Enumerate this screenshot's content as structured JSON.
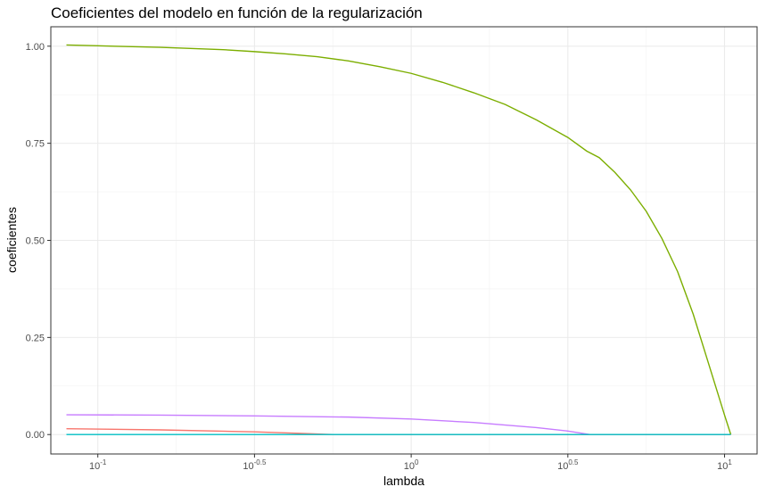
{
  "chart_data": {
    "type": "line",
    "title": "Coeficientes del modelo en función de la regularización",
    "xlabel": "lambda",
    "ylabel": "coeficientes",
    "x_scale": "log10",
    "xlim": [
      0.0708,
      12.7
    ],
    "ylim": [
      -0.05,
      1.05
    ],
    "grid": true,
    "legend": "none",
    "x_ticks": [
      {
        "value": 0.1,
        "base": "10",
        "exp": "-1"
      },
      {
        "value": 0.3162,
        "base": "10",
        "exp": "-0.5"
      },
      {
        "value": 1,
        "base": "10",
        "exp": "0"
      },
      {
        "value": 3.162,
        "base": "10",
        "exp": "0.5"
      },
      {
        "value": 10,
        "base": "10",
        "exp": "1"
      }
    ],
    "y_ticks": [
      "0.00",
      "0.25",
      "0.50",
      "0.75",
      "1.00"
    ],
    "y_tick_values": [
      0,
      0.25,
      0.5,
      0.75,
      1.0
    ],
    "series": [
      {
        "color": "#7CAE00",
        "points": [
          [
            0.0794,
            1.003
          ],
          [
            0.1,
            1.001
          ],
          [
            0.1585,
            0.997
          ],
          [
            0.2512,
            0.991
          ],
          [
            0.3162,
            0.986
          ],
          [
            0.3981,
            0.98
          ],
          [
            0.5012,
            0.973
          ],
          [
            0.631,
            0.962
          ],
          [
            0.7943,
            0.947
          ],
          [
            1.0,
            0.93
          ],
          [
            1.259,
            0.907
          ],
          [
            1.585,
            0.88
          ],
          [
            1.995,
            0.85
          ],
          [
            2.512,
            0.81
          ],
          [
            3.162,
            0.765
          ],
          [
            3.631,
            0.73
          ],
          [
            3.981,
            0.713
          ],
          [
            4.467,
            0.675
          ],
          [
            5.012,
            0.63
          ],
          [
            5.623,
            0.575
          ],
          [
            6.31,
            0.505
          ],
          [
            7.079,
            0.42
          ],
          [
            7.943,
            0.31
          ],
          [
            8.913,
            0.18
          ],
          [
            10.0,
            0.05
          ],
          [
            10.47,
            0.0
          ]
        ]
      },
      {
        "color": "#C77CFF",
        "points": [
          [
            0.0794,
            0.051
          ],
          [
            0.1585,
            0.05
          ],
          [
            0.3162,
            0.048
          ],
          [
            0.631,
            0.045
          ],
          [
            1.0,
            0.04
          ],
          [
            1.585,
            0.031
          ],
          [
            2.512,
            0.018
          ],
          [
            3.162,
            0.009
          ],
          [
            3.715,
            0.0
          ],
          [
            10.47,
            0.0
          ]
        ]
      },
      {
        "color": "#F8766D",
        "points": [
          [
            0.0794,
            0.015
          ],
          [
            0.1585,
            0.012
          ],
          [
            0.3162,
            0.007
          ],
          [
            0.4467,
            0.003
          ],
          [
            0.5623,
            0.0
          ],
          [
            10.47,
            0.0
          ]
        ]
      },
      {
        "color": "#00BFC4",
        "points": [
          [
            0.0794,
            0.0
          ],
          [
            10.47,
            0.0
          ]
        ]
      }
    ]
  }
}
